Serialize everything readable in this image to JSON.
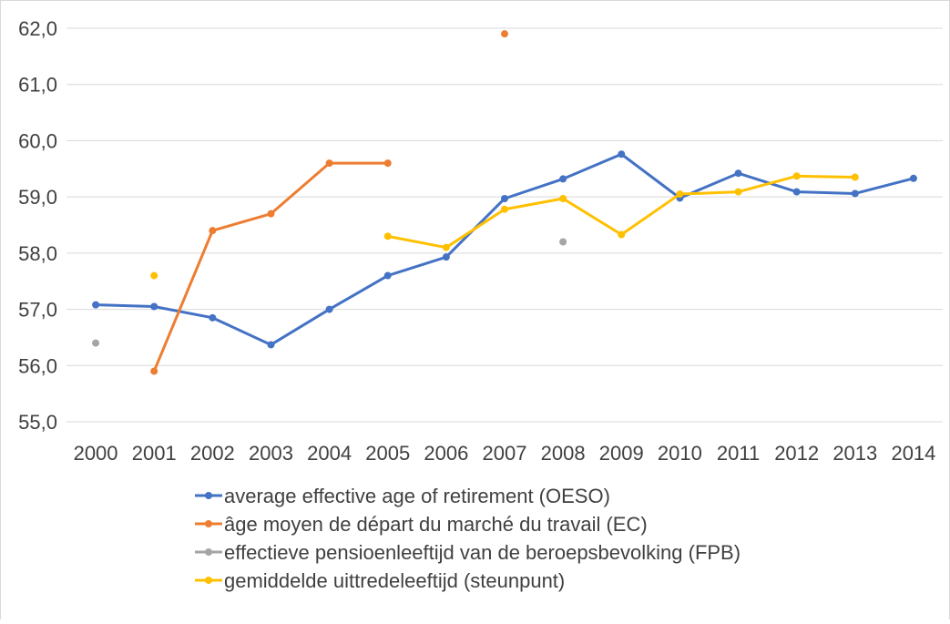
{
  "chart_data": {
    "type": "line",
    "title": "",
    "xlabel": "",
    "ylabel": "",
    "categories": [
      "2000",
      "2001",
      "2002",
      "2003",
      "2004",
      "2005",
      "2006",
      "2007",
      "2008",
      "2009",
      "2010",
      "2011",
      "2012",
      "2013",
      "2014"
    ],
    "ylim": [
      55,
      62
    ],
    "yticks": [
      "55,0",
      "56,0",
      "57,0",
      "58,0",
      "59,0",
      "60,0",
      "61,0",
      "62,0"
    ],
    "grid": true,
    "legend_position": "bottom",
    "series": [
      {
        "name": "average effective age of retirement (OESO)",
        "color": "#4472c4",
        "values": [
          57.08,
          57.05,
          56.85,
          56.37,
          57.0,
          57.6,
          57.93,
          58.97,
          59.32,
          59.76,
          58.98,
          59.42,
          59.09,
          59.06,
          59.33
        ]
      },
      {
        "name": "âge moyen de départ du marché du travail (EC)",
        "color": "#ed7d31",
        "values": [
          null,
          55.9,
          58.4,
          58.7,
          59.6,
          59.6,
          null,
          61.9,
          null,
          null,
          null,
          null,
          null,
          null,
          null
        ]
      },
      {
        "name": "effectieve pensioenleeftijd van de beroepsbevolking (FPB)",
        "color": "#a5a5a5",
        "values": [
          56.4,
          null,
          null,
          null,
          null,
          null,
          null,
          null,
          58.2,
          null,
          null,
          null,
          null,
          null,
          null
        ]
      },
      {
        "name": "gemiddelde uittredeleeftijd (steunpunt)",
        "color": "#ffc000",
        "values": [
          null,
          57.6,
          null,
          null,
          null,
          58.3,
          58.1,
          58.78,
          58.97,
          58.33,
          59.05,
          59.09,
          59.37,
          59.35,
          null
        ]
      }
    ]
  }
}
